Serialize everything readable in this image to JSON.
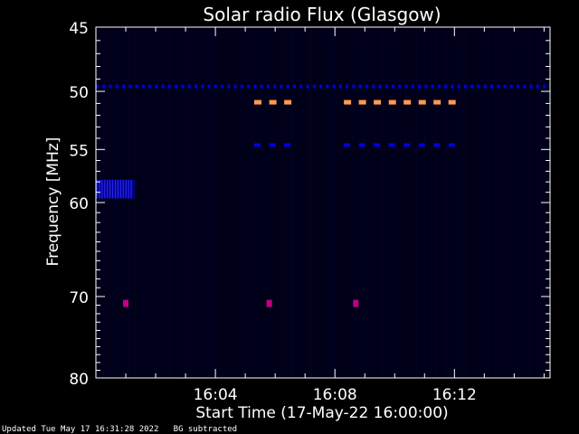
{
  "chart_data": {
    "type": "heatmap",
    "title": "Solar radio Flux (Glasgow)",
    "xlabel": "Start Time (17-May-22 16:00:00)",
    "ylabel": "Frequency [MHz]",
    "x_range_minutes": [
      0,
      15.2
    ],
    "y_range_mhz": [
      45,
      80
    ],
    "y_scale": "log",
    "y_ticks": [
      45,
      50,
      55,
      60,
      70,
      80
    ],
    "y_tick_labels": [
      "45",
      "50",
      "55",
      "60",
      "70",
      "80"
    ],
    "x_ticks": [
      4,
      8,
      12
    ],
    "x_tick_labels": [
      "16:04",
      "16:08",
      "16:12"
    ],
    "colors": {
      "background": "#000000",
      "plot_background": "#000018",
      "axis": "#ffffff",
      "weak_signal": "#0000e0",
      "strong_signal": "#ff9a50",
      "burst": "#c00080"
    },
    "features": [
      {
        "kind": "dashed-line",
        "freq": 49.6,
        "t_start": 0,
        "t_end": 15.2,
        "color": "weak_signal",
        "spacing": 0.22
      },
      {
        "kind": "dashed-line",
        "freq": 50.9,
        "t_start": 5.3,
        "t_end": 6.6,
        "color": "strong_signal",
        "spacing": 0.5
      },
      {
        "kind": "dashed-line",
        "freq": 50.9,
        "t_start": 8.3,
        "t_end": 12.0,
        "color": "strong_signal",
        "spacing": 0.5
      },
      {
        "kind": "dashed-line",
        "freq": 54.6,
        "t_start": 5.3,
        "t_end": 6.6,
        "color": "weak_signal",
        "spacing": 0.5
      },
      {
        "kind": "dashed-line",
        "freq": 54.6,
        "t_start": 8.3,
        "t_end": 12.0,
        "color": "weak_signal",
        "spacing": 0.5
      },
      {
        "kind": "block",
        "freq_low": 57.8,
        "freq_high": 59.6,
        "t_start": 0,
        "t_end": 1.3,
        "color": "weak_signal"
      },
      {
        "kind": "spot",
        "freq": 70.8,
        "t": 1.0,
        "color": "burst"
      },
      {
        "kind": "spot",
        "freq": 70.8,
        "t": 5.8,
        "color": "burst"
      },
      {
        "kind": "spot",
        "freq": 70.8,
        "t": 8.7,
        "color": "burst"
      }
    ]
  },
  "footer": {
    "updated": "Updated Tue May 17 16:31:28 2022",
    "note": "BG subtracted"
  }
}
